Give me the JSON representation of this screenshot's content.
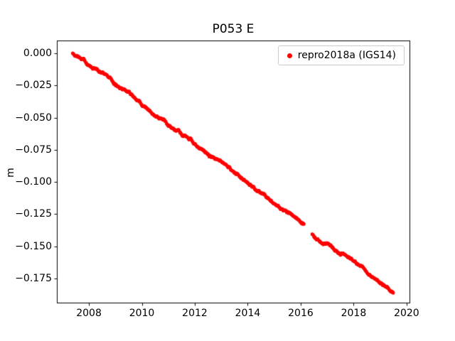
{
  "chart_data": {
    "type": "scatter",
    "title": "P053 E",
    "xlabel": "",
    "ylabel": "m",
    "xlim": [
      2006.79,
      2020.11
    ],
    "ylim": [
      -0.1945,
      0.0095
    ],
    "grid": false,
    "xticks": [
      2008,
      2010,
      2012,
      2014,
      2016,
      2018,
      2020
    ],
    "xtick_labels": [
      "2008",
      "2010",
      "2012",
      "2014",
      "2016",
      "2018",
      "2020"
    ],
    "yticks": [
      0.0,
      -0.025,
      -0.05,
      -0.075,
      -0.1,
      -0.125,
      -0.15,
      -0.175
    ],
    "ytick_labels": [
      "0.000",
      "−0.025",
      "−0.050",
      "−0.075",
      "−0.100",
      "−0.125",
      "−0.150",
      "−0.175"
    ],
    "legend": {
      "position": "upper right",
      "entries": [
        {
          "label": "repro2018a (IGS14)",
          "marker_color": "#ff0000"
        }
      ]
    },
    "series": [
      {
        "name": "repro2018a (IGS14)",
        "color": "#ff0000",
        "marker": "dot",
        "point_interval": 0.004,
        "noise_amplitude": 0.001,
        "gaps": [
          [
            2016.13,
            2016.42
          ]
        ],
        "anchors": [
          [
            2007.38,
            0.0
          ],
          [
            2007.6,
            -0.002
          ],
          [
            2007.8,
            -0.004
          ],
          [
            2008.0,
            -0.009
          ],
          [
            2008.3,
            -0.012
          ],
          [
            2008.6,
            -0.017
          ],
          [
            2008.9,
            -0.022
          ],
          [
            2009.2,
            -0.026
          ],
          [
            2009.5,
            -0.031
          ],
          [
            2009.8,
            -0.036
          ],
          [
            2010.1,
            -0.041
          ],
          [
            2010.4,
            -0.046
          ],
          [
            2010.7,
            -0.05
          ],
          [
            2011.0,
            -0.055
          ],
          [
            2011.3,
            -0.059
          ],
          [
            2011.6,
            -0.064
          ],
          [
            2011.9,
            -0.068
          ],
          [
            2012.2,
            -0.073
          ],
          [
            2012.5,
            -0.078
          ],
          [
            2012.8,
            -0.082
          ],
          [
            2013.1,
            -0.087
          ],
          [
            2013.4,
            -0.091
          ],
          [
            2013.7,
            -0.095
          ],
          [
            2014.0,
            -0.1
          ],
          [
            2014.3,
            -0.105
          ],
          [
            2014.6,
            -0.109
          ],
          [
            2014.9,
            -0.114
          ],
          [
            2015.2,
            -0.119
          ],
          [
            2015.5,
            -0.124
          ],
          [
            2015.8,
            -0.129
          ],
          [
            2016.13,
            -0.134
          ],
          [
            2016.42,
            -0.141
          ],
          [
            2016.7,
            -0.145
          ],
          [
            2017.0,
            -0.149
          ],
          [
            2017.3,
            -0.153
          ],
          [
            2017.6,
            -0.157
          ],
          [
            2017.9,
            -0.161
          ],
          [
            2018.2,
            -0.165
          ],
          [
            2018.5,
            -0.17
          ],
          [
            2018.8,
            -0.174
          ],
          [
            2019.1,
            -0.179
          ],
          [
            2019.3,
            -0.182
          ],
          [
            2019.5,
            -0.186
          ]
        ]
      }
    ]
  }
}
